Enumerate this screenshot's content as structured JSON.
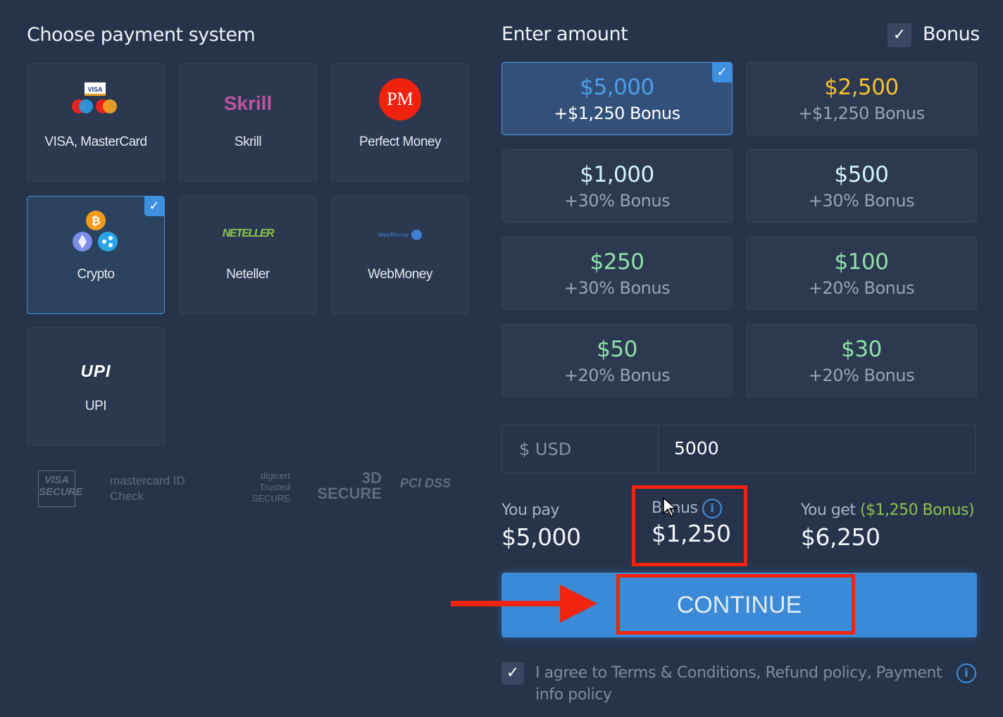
{
  "payment": {
    "title": "Choose payment system",
    "methods": [
      {
        "label": "VISA, MasterCard",
        "icon": "visa-mastercard-icon"
      },
      {
        "label": "Skrill",
        "logo_text": "Skrill",
        "icon": "skrill-logo"
      },
      {
        "label": "Perfect Money",
        "logo_text": "PM",
        "icon": "perfect-money-logo"
      },
      {
        "label": "Crypto",
        "icon": "crypto-icon",
        "selected": true
      },
      {
        "label": "Neteller",
        "logo_text": "NETELLER",
        "icon": "neteller-logo"
      },
      {
        "label": "WebMoney",
        "logo_text": "WebMoney",
        "icon": "webmoney-logo"
      },
      {
        "label": "UPI",
        "logo_text": "UPI",
        "icon": "upi-logo"
      }
    ],
    "security_badges": [
      "VISA SECURE",
      "mastercard ID Check",
      "digicert Trusted SECURE",
      "3D SECURE",
      "PCI DSS"
    ]
  },
  "amount": {
    "title": "Enter amount",
    "bonus_toggle": {
      "label": "Bonus",
      "checked": true
    },
    "options": [
      {
        "amount": "$5,000",
        "bonus": "+$1,250 Bonus",
        "selected": true,
        "color": "#4a9fe8"
      },
      {
        "amount": "$2,500",
        "bonus": "+$1,250 Bonus",
        "color": "#f5c02e"
      },
      {
        "amount": "$1,000",
        "bonus": "+30% Bonus",
        "color": "#d2f3ff"
      },
      {
        "amount": "$500",
        "bonus": "+30% Bonus",
        "color": "#d2f3ff"
      },
      {
        "amount": "$250",
        "bonus": "+30% Bonus",
        "color": "#8ee0a8"
      },
      {
        "amount": "$100",
        "bonus": "+20% Bonus",
        "color": "#8ee0a8"
      },
      {
        "amount": "$50",
        "bonus": "+20% Bonus",
        "color": "#8ee0a8"
      },
      {
        "amount": "$30",
        "bonus": "+20% Bonus",
        "color": "#8ee0a8"
      }
    ],
    "currency": "$ USD",
    "value": "5000"
  },
  "summary": {
    "pay_label": "You pay",
    "pay_value": "$5,000",
    "bonus_label": "Bonus",
    "bonus_value": "$1,250",
    "get_label": "You get",
    "get_bonus": "($1,250 Bonus)",
    "get_value": "$6,250"
  },
  "continue_label": "CONTINUE",
  "agree": {
    "text": "I agree to Terms & Conditions, Refund policy, Payment info policy",
    "checked": true
  },
  "colors": {
    "background": "#27334a",
    "accent": "#3d8fe0",
    "annotation": "#f2230f",
    "bonus_green": "#8bc34a"
  }
}
